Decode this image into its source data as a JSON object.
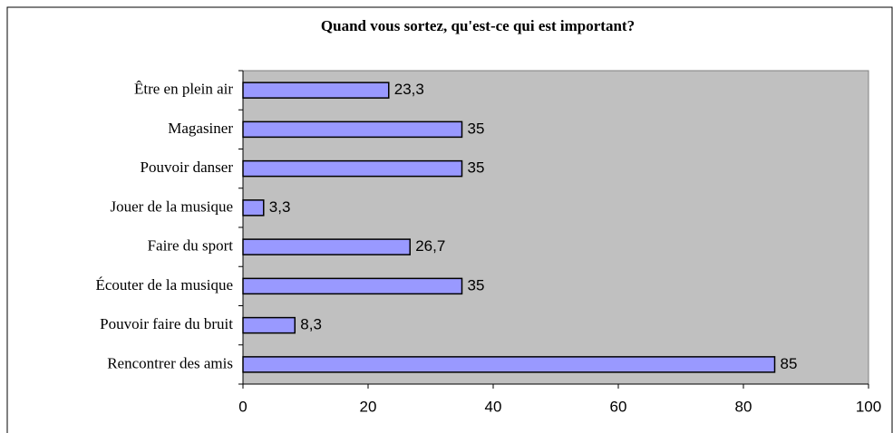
{
  "chart_data": {
    "type": "bar",
    "orientation": "horizontal",
    "title": "Quand vous sortez, qu'est-ce qui est important?",
    "categories": [
      "Être en plein air",
      "Magasiner",
      "Pouvoir danser",
      "Jouer de la musique",
      "Faire du sport",
      "Écouter de la musique",
      "Pouvoir faire du bruit",
      "Rencontrer des amis"
    ],
    "values": [
      23.3,
      35,
      35,
      3.3,
      26.7,
      35,
      8.3,
      85
    ],
    "value_labels": [
      "23,3",
      "35",
      "35",
      "3,3",
      "26,7",
      "35",
      "8,3",
      "85"
    ],
    "color": "#9999ff",
    "xlim": [
      0,
      100
    ],
    "xticks": [
      0,
      20,
      40,
      60,
      80,
      100
    ]
  }
}
